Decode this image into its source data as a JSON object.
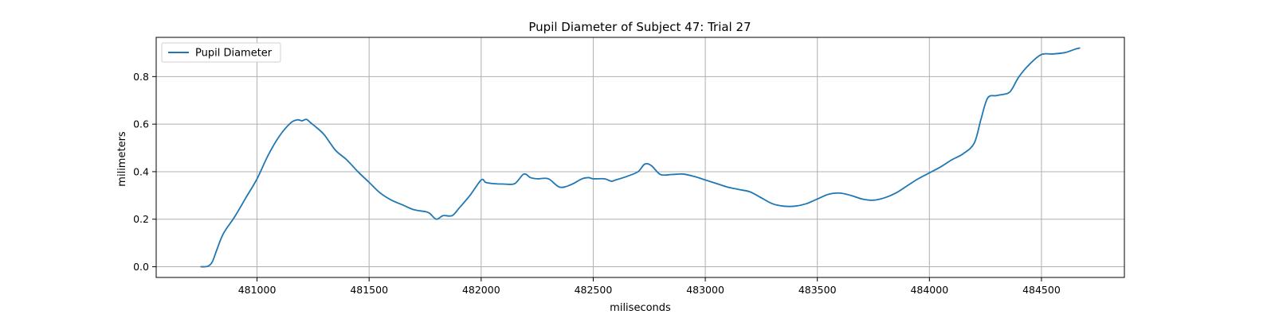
{
  "chart_data": {
    "type": "line",
    "title": "Pupil Diameter of Subject 47: Trial 27",
    "xlabel": "miliseconds",
    "ylabel": "milimeters",
    "xlim": [
      480550,
      484870
    ],
    "ylim": [
      -0.045,
      0.965
    ],
    "xticks": [
      481000,
      481500,
      482000,
      482500,
      483000,
      483500,
      484000,
      484500
    ],
    "yticks": [
      0.0,
      0.2,
      0.4,
      0.6,
      0.8
    ],
    "xtick_labels": [
      "481000",
      "481500",
      "482000",
      "482500",
      "483000",
      "483500",
      "484000",
      "484500"
    ],
    "ytick_labels": [
      "0.0",
      "0.2",
      "0.4",
      "0.6",
      "0.8"
    ],
    "grid": true,
    "legend": {
      "position": "top-left",
      "entries": [
        "Pupil Diameter"
      ]
    },
    "colors": {
      "series": "#1f77b4",
      "grid": "#b0b0b0"
    },
    "series": [
      {
        "name": "Pupil Diameter",
        "x": [
          480750,
          480780,
          480800,
          480820,
          480850,
          480900,
          480950,
          481000,
          481050,
          481100,
          481150,
          481180,
          481200,
          481220,
          481240,
          481260,
          481300,
          481350,
          481400,
          481450,
          481500,
          481550,
          481600,
          481650,
          481700,
          481750,
          481770,
          481800,
          481830,
          481870,
          481900,
          481950,
          482000,
          482020,
          482050,
          482100,
          482150,
          482190,
          482220,
          482250,
          482300,
          482350,
          482400,
          482450,
          482480,
          482500,
          482550,
          482580,
          482600,
          482650,
          482700,
          482730,
          482760,
          482800,
          482850,
          482900,
          482950,
          483000,
          483050,
          483100,
          483150,
          483200,
          483250,
          483300,
          483350,
          483400,
          483450,
          483500,
          483550,
          483600,
          483650,
          483700,
          483750,
          483800,
          483850,
          483900,
          483950,
          484000,
          484050,
          484100,
          484150,
          484200,
          484230,
          484260,
          484300,
          484350,
          484370,
          484400,
          484450,
          484500,
          484550,
          484600,
          484620,
          484650,
          484670
        ],
        "y": [
          0.0,
          0.002,
          0.02,
          0.07,
          0.14,
          0.21,
          0.29,
          0.37,
          0.47,
          0.55,
          0.605,
          0.618,
          0.614,
          0.62,
          0.605,
          0.59,
          0.555,
          0.49,
          0.45,
          0.4,
          0.355,
          0.31,
          0.28,
          0.26,
          0.24,
          0.232,
          0.225,
          0.2,
          0.215,
          0.215,
          0.245,
          0.3,
          0.365,
          0.355,
          0.35,
          0.348,
          0.35,
          0.39,
          0.375,
          0.37,
          0.37,
          0.335,
          0.345,
          0.37,
          0.375,
          0.37,
          0.37,
          0.36,
          0.365,
          0.38,
          0.4,
          0.432,
          0.425,
          0.388,
          0.388,
          0.39,
          0.38,
          0.365,
          0.35,
          0.335,
          0.325,
          0.315,
          0.29,
          0.265,
          0.255,
          0.255,
          0.265,
          0.285,
          0.305,
          0.31,
          0.3,
          0.285,
          0.28,
          0.29,
          0.31,
          0.34,
          0.37,
          0.395,
          0.42,
          0.45,
          0.475,
          0.52,
          0.62,
          0.71,
          0.72,
          0.73,
          0.75,
          0.8,
          0.855,
          0.893,
          0.895,
          0.9,
          0.905,
          0.915,
          0.92
        ]
      }
    ]
  }
}
